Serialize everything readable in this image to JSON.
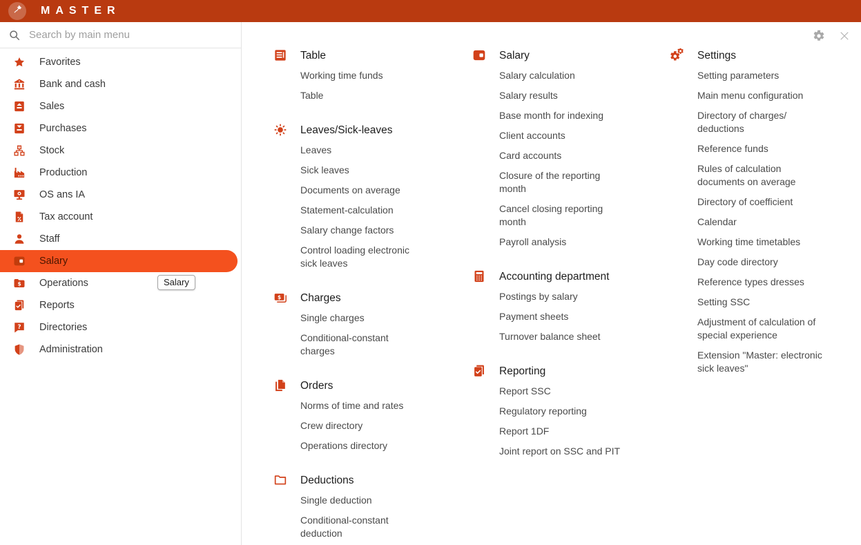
{
  "topbar": {
    "brand": "MASTER",
    "logo_icon": "pushpin-icon"
  },
  "window_controls": {
    "gear_icon": "gear-icon",
    "close_icon": "close-icon"
  },
  "search": {
    "placeholder": "Search by main menu",
    "icon": "magnifier-icon"
  },
  "sidebar": {
    "selected_item": "Salary",
    "tooltip": {
      "text": "Salary"
    },
    "items": [
      {
        "label": "Favorites",
        "icon": "star",
        "selected": false
      },
      {
        "label": "Bank and cash",
        "icon": "bank",
        "selected": false
      },
      {
        "label": "Sales",
        "icon": "doc-up",
        "selected": false
      },
      {
        "label": "Purchases",
        "icon": "doc-down",
        "selected": false
      },
      {
        "label": "Stock",
        "icon": "org",
        "selected": false
      },
      {
        "label": "Production",
        "icon": "factory",
        "selected": false
      },
      {
        "label": "OS ans IA",
        "icon": "monitor",
        "selected": false
      },
      {
        "label": "Tax account",
        "icon": "tax-doc",
        "selected": false
      },
      {
        "label": "Staff",
        "icon": "person",
        "selected": false
      },
      {
        "label": "Salary",
        "icon": "wallet",
        "selected": true
      },
      {
        "label": "Operations",
        "icon": "folder-dollar",
        "selected": false
      },
      {
        "label": "Reports",
        "icon": "report-check",
        "selected": false
      },
      {
        "label": "Directories",
        "icon": "question",
        "selected": false
      },
      {
        "label": "Administration",
        "icon": "shield",
        "selected": false
      }
    ]
  },
  "content": {
    "columns": [
      {
        "sections": [
          {
            "title": "Table",
            "icon": "table",
            "items": [
              "Working time funds",
              "Table"
            ]
          },
          {
            "title": "Leaves/Sick-leaves",
            "icon": "sun",
            "items": [
              "Leaves",
              "Sick leaves",
              "Documents on average",
              "Statement-calculation",
              "Salary change factors",
              "Control loading electronic sick leaves"
            ]
          },
          {
            "title": "Charges",
            "icon": "banknote",
            "items": [
              "Single charges",
              "Conditional-constant charges"
            ]
          },
          {
            "title": "Orders",
            "icon": "documents",
            "items": [
              "Norms of time and rates",
              "Crew directory",
              "Operations directory"
            ]
          },
          {
            "title": "Deductions",
            "icon": "folder-outline",
            "items": [
              "Single deduction",
              "Conditional-constant deduction"
            ]
          }
        ]
      },
      {
        "sections": [
          {
            "title": "Salary",
            "icon": "wallet",
            "items": [
              "Salary calculation",
              "Salary results",
              "Base month for indexing",
              "Client accounts",
              "Card accounts",
              "Closure of the reporting month",
              "Cancel closing reporting month",
              "Payroll analysis"
            ]
          },
          {
            "title": "Accounting department",
            "icon": "calculator",
            "items": [
              "Postings by salary",
              "Payment sheets",
              "Turnover balance sheet"
            ]
          },
          {
            "title": "Reporting",
            "icon": "report-check",
            "items": [
              "Report SSC",
              "Regulatory reporting",
              "Report 1DF",
              "Joint report on SSC and PIT"
            ]
          }
        ]
      },
      {
        "sections": [
          {
            "title": "Settings",
            "icon": "gears",
            "items": [
              "Setting parameters",
              "Main menu configuration",
              "Directory of charges/ deductions",
              "Reference funds",
              "Rules of calculation documents on average",
              "Directory of coefficient",
              "Calendar",
              "Working time timetables",
              "Day code directory",
              "Reference types dresses",
              "Setting SSC",
              "Adjustment of calculation of special experience",
              "Extension \"Master: electronic sick leaves\""
            ]
          }
        ]
      }
    ]
  },
  "colors": {
    "topbar_bg": "#b93a10",
    "accent_icon": "#d2411a",
    "selected_bg": "#f4511e",
    "selected_text": "#4a1600"
  }
}
